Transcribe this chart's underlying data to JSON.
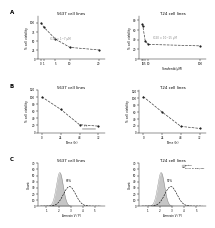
{
  "panel_A_left": {
    "title": "5637 cell lines",
    "xlabel": "",
    "ylabel": "% cell viability",
    "x": [
      0,
      1,
      5,
      10,
      20
    ],
    "y": [
      100,
      88,
      55,
      32,
      25
    ],
    "ic50_text": "IC50 = 1~7 μM"
  },
  "panel_A_right": {
    "title": "T24 cell lines",
    "xlabel": "Sorafenib(μM)",
    "ylabel": "% cell viability",
    "x": [
      0,
      1,
      5,
      10,
      100
    ],
    "y": [
      72,
      68,
      38,
      30,
      27
    ],
    "ic50_text": "IC50 = 10~15 μM"
  },
  "panel_B_left": {
    "title": "5637 cell lines",
    "xlabel": "Time (h)",
    "ylabel": "% cell viability",
    "x": [
      0,
      24,
      48,
      72
    ],
    "y": [
      100,
      65,
      22,
      18
    ]
  },
  "panel_B_right": {
    "title": "T24 cell lines",
    "xlabel": "Time (h)",
    "ylabel": "% cell viability",
    "x": [
      0,
      24,
      48,
      72
    ],
    "y": [
      105,
      60,
      18,
      12
    ]
  },
  "panel_C_left": {
    "title": "5637 cell lines",
    "xlabel": "Annexin V / PI",
    "ylabel": "Count",
    "pct_text": "65%"
  },
  "panel_C_right": {
    "title": "T24 cell lines",
    "xlabel": "Annexin V / PI",
    "ylabel": "Count",
    "pct_text": "51%",
    "legend": [
      "Control",
      "soraf. of 6μM/day"
    ]
  },
  "colors": {
    "line_color": "#444444",
    "dot_color": "#222222",
    "hist_fill": "#aaaaaa",
    "background": "#ffffff"
  },
  "panel_labels": [
    "A",
    "B",
    "C"
  ]
}
